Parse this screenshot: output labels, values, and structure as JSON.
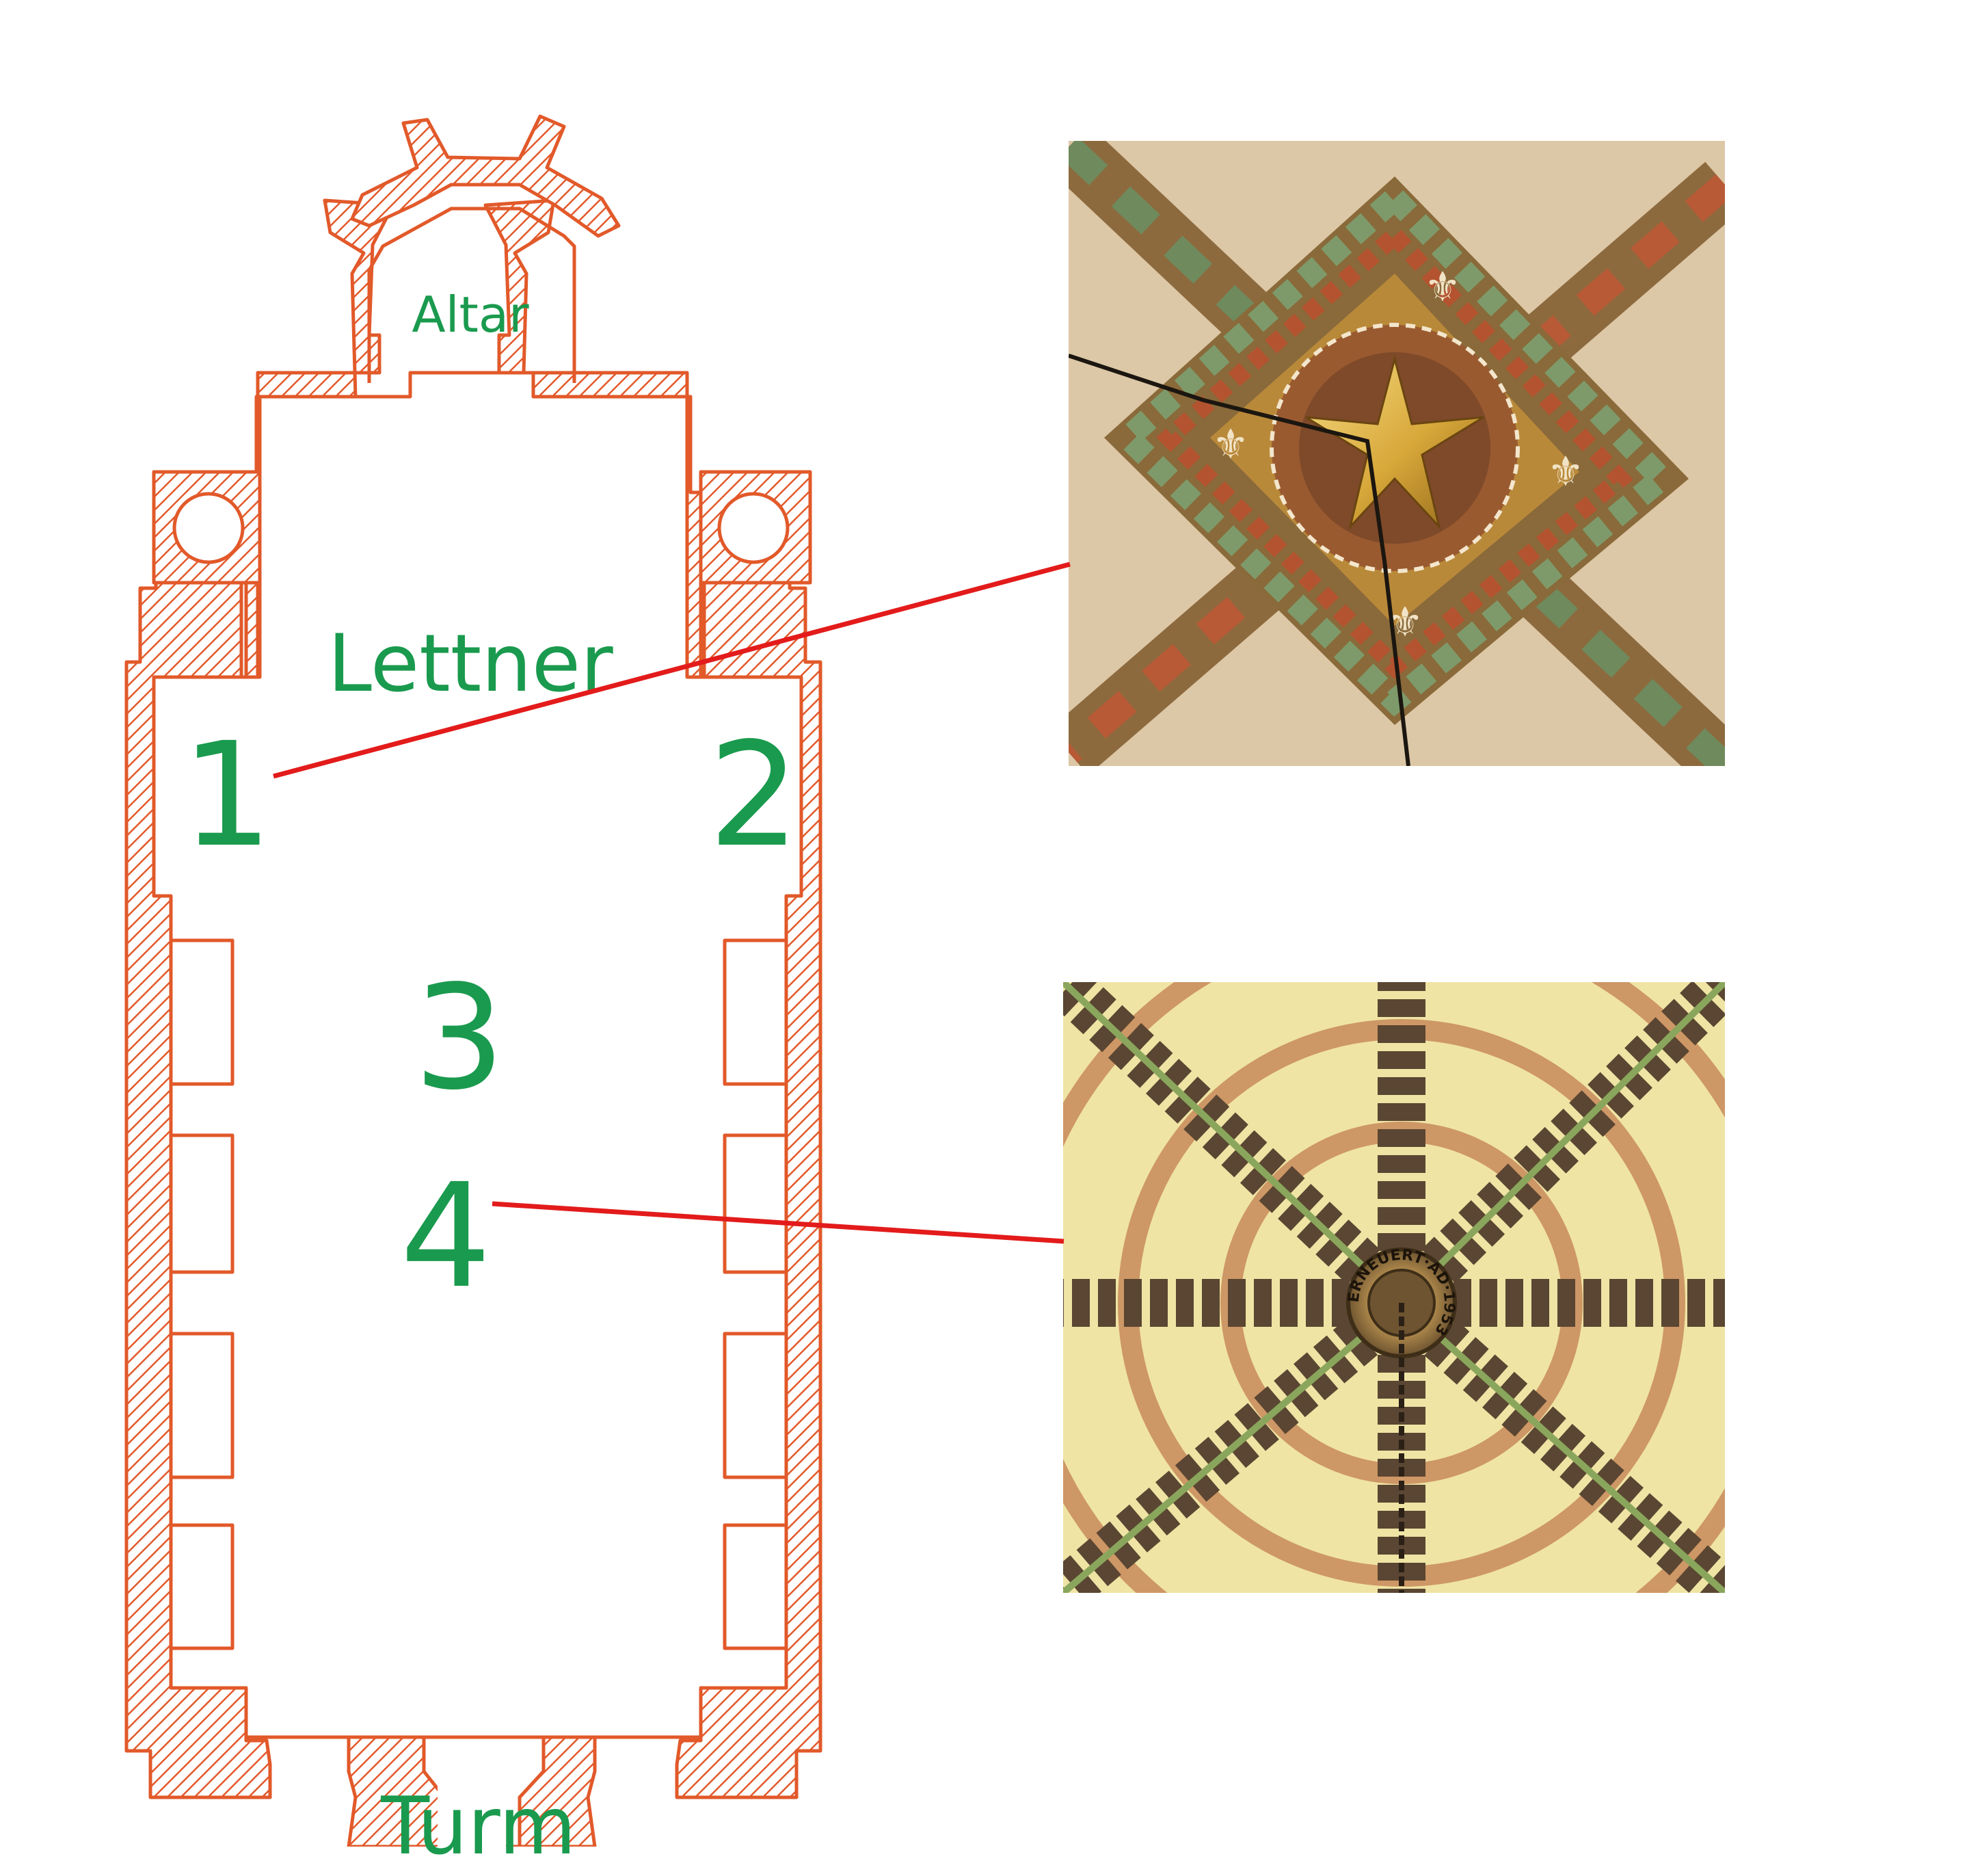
{
  "labels": {
    "altar": "Altar",
    "lettner": "Lettner",
    "turm": "Turm",
    "n1": "1",
    "n2": "2",
    "n3": "3",
    "n4": "4"
  },
  "medallion_text": "ERNEUERT·AD·1953",
  "colors": {
    "wall": "#e2592a",
    "label": "#1a9a4e",
    "connector": "#e31b1b",
    "background": "#ffffff"
  }
}
